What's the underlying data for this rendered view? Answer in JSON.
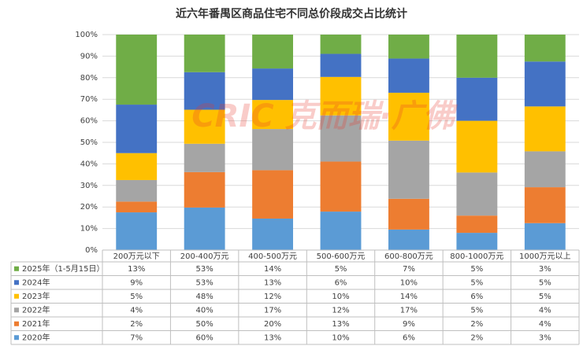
{
  "chart_data": {
    "type": "bar",
    "stacking": "percent",
    "title": "近六年番禺区商品住宅不同总价段成交占比统计",
    "watermark": "CRIC 克而瑞·广佛",
    "categories": [
      "200万元以下",
      "200-400万元",
      "400-500万元",
      "500-600万元",
      "600-800万元",
      "800-1000万元",
      "1000万元以上"
    ],
    "series": [
      {
        "name": "2025年（1-5月15日）",
        "color": "#70ad47",
        "values": [
          13,
          53,
          14,
          5,
          7,
          5,
          3
        ],
        "value_labels": [
          "13%",
          "53%",
          "14%",
          "5%",
          "7%",
          "5%",
          "3%"
        ]
      },
      {
        "name": "2024年",
        "color": "#4472c4",
        "values": [
          9,
          53,
          13,
          6,
          10,
          5,
          5
        ],
        "value_labels": [
          "9%",
          "53%",
          "13%",
          "6%",
          "10%",
          "5%",
          "5%"
        ]
      },
      {
        "name": "2023年",
        "color": "#ffc000",
        "values": [
          5,
          48,
          12,
          10,
          14,
          6,
          5
        ],
        "value_labels": [
          "5%",
          "48%",
          "12%",
          "10%",
          "14%",
          "6%",
          "5%"
        ]
      },
      {
        "name": "2022年",
        "color": "#a5a5a5",
        "values": [
          4,
          40,
          17,
          12,
          17,
          5,
          4
        ],
        "value_labels": [
          "4%",
          "40%",
          "17%",
          "12%",
          "17%",
          "5%",
          "4%"
        ]
      },
      {
        "name": "2021年",
        "color": "#ed7d31",
        "values": [
          2,
          50,
          20,
          13,
          9,
          2,
          4
        ],
        "value_labels": [
          "2%",
          "50%",
          "20%",
          "13%",
          "9%",
          "2%",
          "4%"
        ]
      },
      {
        "name": "2020年",
        "color": "#5b9bd5",
        "values": [
          7,
          60,
          13,
          10,
          6,
          2,
          3
        ],
        "value_labels": [
          "7%",
          "60%",
          "13%",
          "10%",
          "6%",
          "2%",
          "3%"
        ]
      }
    ],
    "ylim": [
      0,
      100
    ],
    "yticks": [
      {
        "value": 0,
        "label": "0%"
      },
      {
        "value": 10,
        "label": "10%"
      },
      {
        "value": 20,
        "label": "20%"
      },
      {
        "value": 30,
        "label": "30%"
      },
      {
        "value": 40,
        "label": "40%"
      },
      {
        "value": 50,
        "label": "50%"
      },
      {
        "value": 60,
        "label": "60%"
      },
      {
        "value": 70,
        "label": "70%"
      },
      {
        "value": 80,
        "label": "80%"
      },
      {
        "value": 90,
        "label": "90%"
      },
      {
        "value": 100,
        "label": "100%"
      }
    ],
    "grid": true
  }
}
